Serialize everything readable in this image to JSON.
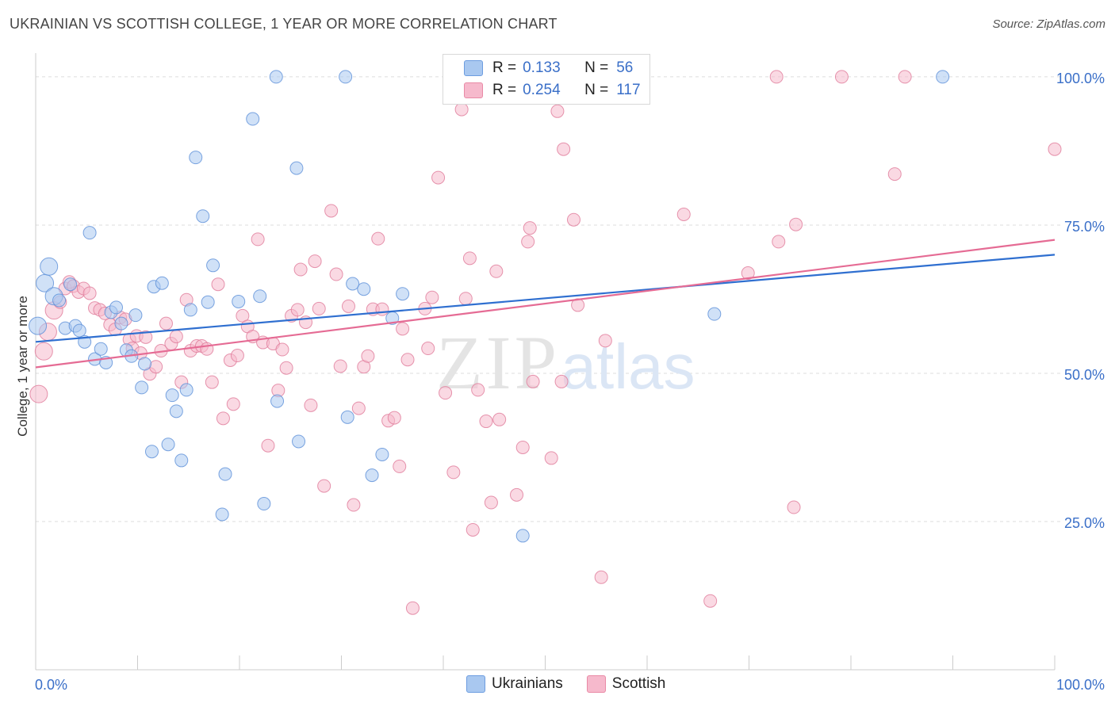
{
  "title": "UKRAINIAN VS SCOTTISH COLLEGE, 1 YEAR OR MORE CORRELATION CHART",
  "source": "Source: ZipAtlas.com",
  "watermark": {
    "zip": "ZIP",
    "atlas": "atlas"
  },
  "legend": {
    "r_label": "R =",
    "n_label": "N =",
    "rows": [
      {
        "r": "0.133",
        "n": "56",
        "color": "#a9c8f0",
        "border": "#6d9de0"
      },
      {
        "r": "0.254",
        "n": "117",
        "color": "#f6b9cc",
        "border": "#e98aa6"
      }
    ]
  },
  "bottom_legend": [
    {
      "label": "Ukrainians",
      "color": "#a9c8f0"
    },
    {
      "label": "Scottish",
      "color": "#f6b9cc"
    }
  ],
  "colors": {
    "ukrainian_point": "#a9c8f0",
    "ukrainian_edge": "#5b8fd8",
    "ukrainian_line": "#2f6fd0",
    "scottish_point": "#f6b9cc",
    "scottish_edge": "#e07a9a",
    "scottish_line": "#e56b94",
    "axis_label": "#3a6fc8",
    "grid": "#dddddd"
  },
  "chart_data": {
    "type": "scatter",
    "title": "UKRAINIAN VS SCOTTISH COLLEGE, 1 YEAR OR MORE CORRELATION CHART",
    "xlabel": "",
    "ylabel": "College, 1 year or more",
    "xlim": [
      0,
      100
    ],
    "ylim": [
      0,
      104
    ],
    "x_tick_labels": [
      "0.0%",
      "100.0%"
    ],
    "y_ticks": [
      25,
      50,
      75,
      100
    ],
    "y_tick_labels": [
      "25.0%",
      "50.0%",
      "75.0%",
      "100.0%"
    ],
    "grid": true,
    "legend_position": "top-center",
    "series": [
      {
        "name": "Ukrainians",
        "trend": {
          "x": [
            0,
            100
          ],
          "y": [
            55.3,
            70.0
          ]
        },
        "points": [
          {
            "x": 0.2,
            "y": 58.0
          },
          {
            "x": 0.9,
            "y": 65.2
          },
          {
            "x": 1.3,
            "y": 68.0
          },
          {
            "x": 1.8,
            "y": 63.0
          },
          {
            "x": 2.3,
            "y": 62.3
          },
          {
            "x": 2.9,
            "y": 57.6
          },
          {
            "x": 3.4,
            "y": 65.0
          },
          {
            "x": 3.9,
            "y": 58.0
          },
          {
            "x": 4.3,
            "y": 57.2
          },
          {
            "x": 4.8,
            "y": 55.3
          },
          {
            "x": 5.3,
            "y": 73.7
          },
          {
            "x": 5.8,
            "y": 52.4
          },
          {
            "x": 6.4,
            "y": 54.1
          },
          {
            "x": 6.9,
            "y": 51.8
          },
          {
            "x": 7.4,
            "y": 60.3
          },
          {
            "x": 7.9,
            "y": 61.1
          },
          {
            "x": 8.4,
            "y": 58.4
          },
          {
            "x": 8.9,
            "y": 53.9
          },
          {
            "x": 9.4,
            "y": 52.9
          },
          {
            "x": 9.8,
            "y": 59.8
          },
          {
            "x": 10.4,
            "y": 47.6
          },
          {
            "x": 10.7,
            "y": 51.6
          },
          {
            "x": 11.4,
            "y": 36.8
          },
          {
            "x": 11.6,
            "y": 64.6
          },
          {
            "x": 12.4,
            "y": 65.2
          },
          {
            "x": 13.0,
            "y": 38.0
          },
          {
            "x": 13.4,
            "y": 46.3
          },
          {
            "x": 13.8,
            "y": 43.6
          },
          {
            "x": 14.3,
            "y": 35.3
          },
          {
            "x": 14.8,
            "y": 47.2
          },
          {
            "x": 15.2,
            "y": 60.7
          },
          {
            "x": 15.7,
            "y": 86.4
          },
          {
            "x": 16.4,
            "y": 76.5
          },
          {
            "x": 16.9,
            "y": 62.0
          },
          {
            "x": 17.4,
            "y": 68.2
          },
          {
            "x": 18.3,
            "y": 26.2
          },
          {
            "x": 18.6,
            "y": 33.0
          },
          {
            "x": 19.9,
            "y": 62.1
          },
          {
            "x": 21.3,
            "y": 92.9
          },
          {
            "x": 22.0,
            "y": 63.0
          },
          {
            "x": 22.4,
            "y": 28.0
          },
          {
            "x": 23.6,
            "y": 100.0
          },
          {
            "x": 23.7,
            "y": 45.3
          },
          {
            "x": 25.6,
            "y": 84.6
          },
          {
            "x": 25.8,
            "y": 38.5
          },
          {
            "x": 30.4,
            "y": 100.0
          },
          {
            "x": 30.6,
            "y": 42.6
          },
          {
            "x": 31.1,
            "y": 65.1
          },
          {
            "x": 32.2,
            "y": 64.2
          },
          {
            "x": 33.0,
            "y": 32.8
          },
          {
            "x": 34.0,
            "y": 36.3
          },
          {
            "x": 35.0,
            "y": 59.3
          },
          {
            "x": 36.0,
            "y": 63.4
          },
          {
            "x": 47.8,
            "y": 22.6
          },
          {
            "x": 66.6,
            "y": 60.0
          },
          {
            "x": 89.0,
            "y": 100.0
          }
        ]
      },
      {
        "name": "Scottish",
        "trend": {
          "x": [
            0,
            100
          ],
          "y": [
            51.0,
            72.5
          ]
        },
        "points": [
          {
            "x": 0.3,
            "y": 46.5
          },
          {
            "x": 0.8,
            "y": 53.7
          },
          {
            "x": 1.2,
            "y": 57.0
          },
          {
            "x": 1.8,
            "y": 60.6
          },
          {
            "x": 2.4,
            "y": 62.0
          },
          {
            "x": 2.9,
            "y": 64.3
          },
          {
            "x": 3.3,
            "y": 65.4
          },
          {
            "x": 3.7,
            "y": 64.7
          },
          {
            "x": 4.2,
            "y": 63.7
          },
          {
            "x": 4.7,
            "y": 64.3
          },
          {
            "x": 5.3,
            "y": 63.5
          },
          {
            "x": 5.8,
            "y": 61.0
          },
          {
            "x": 6.3,
            "y": 60.7
          },
          {
            "x": 6.8,
            "y": 60.1
          },
          {
            "x": 7.3,
            "y": 58.2
          },
          {
            "x": 7.8,
            "y": 57.4
          },
          {
            "x": 8.3,
            "y": 59.4
          },
          {
            "x": 8.8,
            "y": 59.1
          },
          {
            "x": 9.2,
            "y": 55.7
          },
          {
            "x": 9.5,
            "y": 54.2
          },
          {
            "x": 9.9,
            "y": 56.3
          },
          {
            "x": 10.3,
            "y": 53.4
          },
          {
            "x": 10.8,
            "y": 56.1
          },
          {
            "x": 11.2,
            "y": 49.9
          },
          {
            "x": 11.8,
            "y": 51.1
          },
          {
            "x": 12.3,
            "y": 53.8
          },
          {
            "x": 12.8,
            "y": 58.4
          },
          {
            "x": 13.3,
            "y": 55.0
          },
          {
            "x": 13.8,
            "y": 56.2
          },
          {
            "x": 14.3,
            "y": 48.5
          },
          {
            "x": 14.8,
            "y": 62.4
          },
          {
            "x": 15.2,
            "y": 53.8
          },
          {
            "x": 15.8,
            "y": 54.6
          },
          {
            "x": 16.3,
            "y": 54.6
          },
          {
            "x": 16.8,
            "y": 54.1
          },
          {
            "x": 17.3,
            "y": 48.5
          },
          {
            "x": 17.9,
            "y": 65.0
          },
          {
            "x": 18.4,
            "y": 42.4
          },
          {
            "x": 19.1,
            "y": 52.2
          },
          {
            "x": 19.4,
            "y": 44.8
          },
          {
            "x": 19.8,
            "y": 53.0
          },
          {
            "x": 20.3,
            "y": 59.7
          },
          {
            "x": 20.8,
            "y": 57.9
          },
          {
            "x": 21.3,
            "y": 56.2
          },
          {
            "x": 21.8,
            "y": 72.6
          },
          {
            "x": 22.3,
            "y": 55.2
          },
          {
            "x": 22.8,
            "y": 37.8
          },
          {
            "x": 23.3,
            "y": 55.0
          },
          {
            "x": 23.8,
            "y": 47.1
          },
          {
            "x": 24.2,
            "y": 54.0
          },
          {
            "x": 24.6,
            "y": 50.9
          },
          {
            "x": 25.1,
            "y": 59.7
          },
          {
            "x": 25.7,
            "y": 60.7
          },
          {
            "x": 26.0,
            "y": 67.5
          },
          {
            "x": 26.5,
            "y": 58.6
          },
          {
            "x": 27.0,
            "y": 44.6
          },
          {
            "x": 27.4,
            "y": 68.9
          },
          {
            "x": 27.8,
            "y": 60.9
          },
          {
            "x": 28.3,
            "y": 31.0
          },
          {
            "x": 29.0,
            "y": 77.4
          },
          {
            "x": 29.5,
            "y": 66.7
          },
          {
            "x": 29.9,
            "y": 51.2
          },
          {
            "x": 30.7,
            "y": 61.3
          },
          {
            "x": 31.2,
            "y": 27.8
          },
          {
            "x": 31.7,
            "y": 44.1
          },
          {
            "x": 32.2,
            "y": 51.1
          },
          {
            "x": 32.6,
            "y": 52.9
          },
          {
            "x": 33.1,
            "y": 60.8
          },
          {
            "x": 33.6,
            "y": 72.7
          },
          {
            "x": 34.0,
            "y": 60.8
          },
          {
            "x": 34.6,
            "y": 42.0
          },
          {
            "x": 35.2,
            "y": 42.5
          },
          {
            "x": 35.7,
            "y": 34.3
          },
          {
            "x": 36.0,
            "y": 57.5
          },
          {
            "x": 36.5,
            "y": 52.3
          },
          {
            "x": 37.0,
            "y": 10.4
          },
          {
            "x": 38.2,
            "y": 60.9
          },
          {
            "x": 38.5,
            "y": 54.2
          },
          {
            "x": 38.9,
            "y": 62.8
          },
          {
            "x": 39.5,
            "y": 83.0
          },
          {
            "x": 40.2,
            "y": 46.7
          },
          {
            "x": 41.0,
            "y": 33.3
          },
          {
            "x": 41.8,
            "y": 94.5
          },
          {
            "x": 42.2,
            "y": 62.6
          },
          {
            "x": 42.6,
            "y": 69.4
          },
          {
            "x": 42.9,
            "y": 23.6
          },
          {
            "x": 43.4,
            "y": 47.2
          },
          {
            "x": 44.2,
            "y": 41.9
          },
          {
            "x": 44.7,
            "y": 28.2
          },
          {
            "x": 45.2,
            "y": 67.2
          },
          {
            "x": 45.5,
            "y": 42.2
          },
          {
            "x": 47.2,
            "y": 29.5
          },
          {
            "x": 47.8,
            "y": 37.5
          },
          {
            "x": 48.5,
            "y": 74.5
          },
          {
            "x": 48.8,
            "y": 48.6
          },
          {
            "x": 48.3,
            "y": 72.2
          },
          {
            "x": 50.6,
            "y": 35.7
          },
          {
            "x": 51.2,
            "y": 94.2
          },
          {
            "x": 51.6,
            "y": 48.6
          },
          {
            "x": 53.2,
            "y": 61.5
          },
          {
            "x": 52.8,
            "y": 75.9
          },
          {
            "x": 55.5,
            "y": 15.6
          },
          {
            "x": 55.9,
            "y": 55.5
          },
          {
            "x": 59.3,
            "y": 100.0
          },
          {
            "x": 63.6,
            "y": 76.8
          },
          {
            "x": 66.2,
            "y": 11.6
          },
          {
            "x": 69.9,
            "y": 66.9
          },
          {
            "x": 72.7,
            "y": 100.0
          },
          {
            "x": 72.9,
            "y": 72.2
          },
          {
            "x": 74.6,
            "y": 75.1
          },
          {
            "x": 74.4,
            "y": 27.4
          },
          {
            "x": 79.1,
            "y": 100.0
          },
          {
            "x": 84.3,
            "y": 83.6
          },
          {
            "x": 85.3,
            "y": 100.0
          },
          {
            "x": 100.0,
            "y": 87.8
          },
          {
            "x": 59.4,
            "y": 100.0
          },
          {
            "x": 51.8,
            "y": 87.8
          }
        ]
      }
    ]
  }
}
